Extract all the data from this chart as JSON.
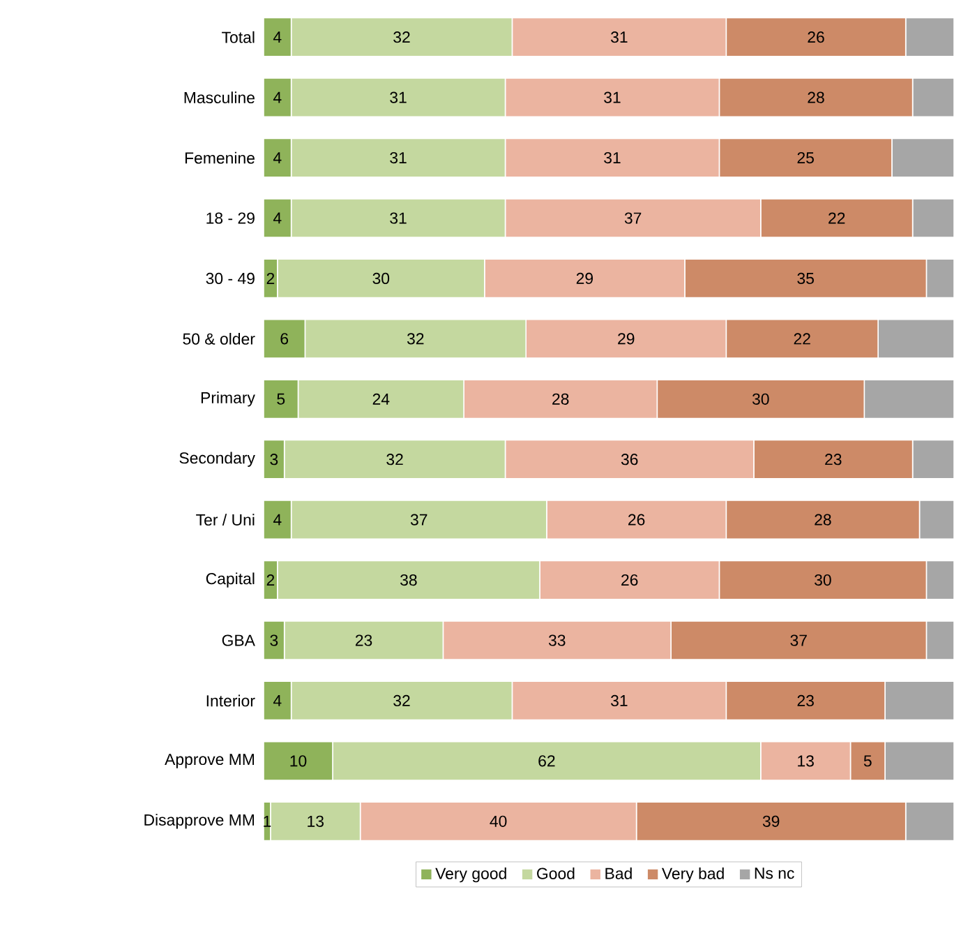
{
  "chart_data": {
    "type": "bar",
    "orientation": "horizontal",
    "stacked": true,
    "legend": "bottom",
    "categories": [
      "Total",
      "Masculine",
      "Femenine",
      "18 - 29",
      "30 - 49",
      "50 & older",
      "Primary",
      "Secondary",
      "Ter / Uni",
      "Capital",
      "GBA",
      "Interior",
      "Approve MM",
      "Disapprove MM"
    ],
    "series": [
      {
        "name": "Very good",
        "color": "#8fb35a",
        "values": [
          4,
          4,
          4,
          4,
          2,
          6,
          5,
          3,
          4,
          2,
          3,
          4,
          10,
          1
        ],
        "value_labels": [
          "4",
          "4",
          "4",
          "4",
          "2",
          "6",
          "5",
          "3",
          "4",
          "2",
          "3",
          "4",
          "10",
          "1"
        ]
      },
      {
        "name": "Good",
        "color": "#c4d89f",
        "values": [
          32,
          31,
          31,
          31,
          30,
          32,
          24,
          32,
          37,
          38,
          23,
          32,
          62,
          13
        ],
        "value_labels": [
          "32",
          "31",
          "31",
          "31",
          "30",
          "32",
          "24",
          "32",
          "37",
          "38",
          "23",
          "32",
          "62",
          "13"
        ]
      },
      {
        "name": "Bad",
        "color": "#ebb4a0",
        "values": [
          31,
          31,
          31,
          37,
          29,
          29,
          28,
          36,
          26,
          26,
          33,
          31,
          13,
          40
        ],
        "value_labels": [
          "31",
          "31",
          "31",
          "37",
          "29",
          "29",
          "28",
          "36",
          "26",
          "26",
          "33",
          "31",
          "13",
          "40"
        ]
      },
      {
        "name": "Very bad",
        "color": "#cd8a67",
        "values": [
          26,
          28,
          25,
          22,
          35,
          22,
          30,
          23,
          28,
          30,
          37,
          23,
          5,
          39
        ],
        "value_labels": [
          "26",
          "28",
          "25",
          "22",
          "35",
          "22",
          "30",
          "23",
          "28",
          "30",
          "37",
          "23",
          "5",
          "39"
        ]
      },
      {
        "name": "Ns nc",
        "color": "#a6a6a6",
        "values": [
          7,
          6,
          9,
          6,
          4,
          11,
          13,
          6,
          5,
          4,
          4,
          10,
          10,
          7
        ],
        "value_labels": [
          null,
          null,
          null,
          null,
          null,
          null,
          null,
          null,
          null,
          null,
          null,
          null,
          null,
          null
        ]
      }
    ]
  }
}
